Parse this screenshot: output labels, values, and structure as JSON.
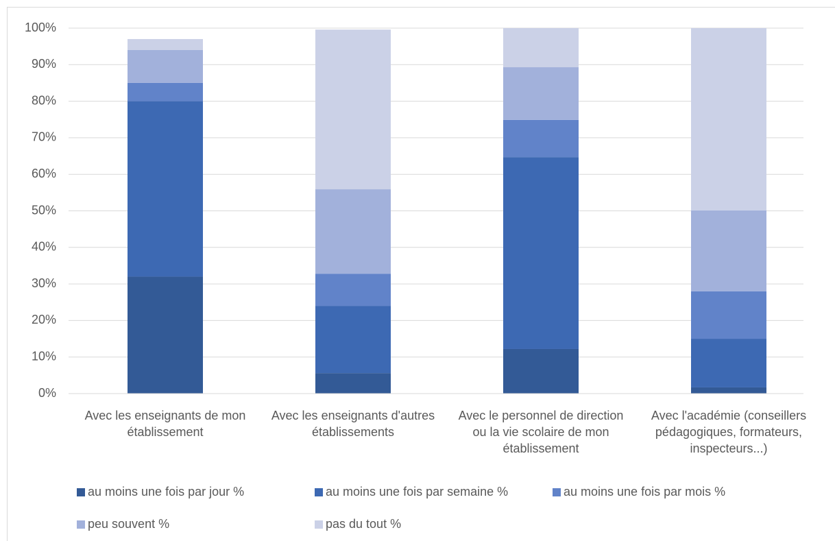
{
  "chart_data": {
    "type": "bar",
    "stacked": true,
    "categories": [
      "Avec les enseignants de mon établissement",
      "Avec les enseignants d'autres établissements",
      "Avec le personnel de direction ou la vie scolaire de mon établissement",
      "Avec l'académie (conseillers pédagogiques, formateurs, inspecteurs...)"
    ],
    "series": [
      {
        "name": "au moins une fois par jour %",
        "color": "#335a96",
        "values": [
          32,
          5.6,
          12.2,
          1.7
        ]
      },
      {
        "name": "au moins une fois par semaine %",
        "color": "#3d69b3",
        "values": [
          48,
          18.4,
          52.5,
          13.3
        ]
      },
      {
        "name": "au moins une fois par mois %",
        "color": "#6183c9",
        "values": [
          5,
          8.8,
          10.2,
          13
        ]
      },
      {
        "name": "peu souvent %",
        "color": "#a2b1db",
        "values": [
          9,
          23.1,
          14.4,
          22.1
        ]
      },
      {
        "name": "pas du tout %",
        "color": "#cbd1e7",
        "values": [
          3,
          43.7,
          10.7,
          49.9
        ]
      }
    ],
    "ylim": [
      0,
      100
    ],
    "yticks": [
      {
        "value": 0,
        "label": "0%"
      },
      {
        "value": 10,
        "label": "10%"
      },
      {
        "value": 20,
        "label": "20%"
      },
      {
        "value": 30,
        "label": "30%"
      },
      {
        "value": 40,
        "label": "40%"
      },
      {
        "value": 50,
        "label": "50%"
      },
      {
        "value": 60,
        "label": "60%"
      },
      {
        "value": 70,
        "label": "70%"
      },
      {
        "value": 80,
        "label": "80%"
      },
      {
        "value": 90,
        "label": "90%"
      },
      {
        "value": 100,
        "label": "100%"
      }
    ],
    "grid": true,
    "legend": "bottom"
  }
}
